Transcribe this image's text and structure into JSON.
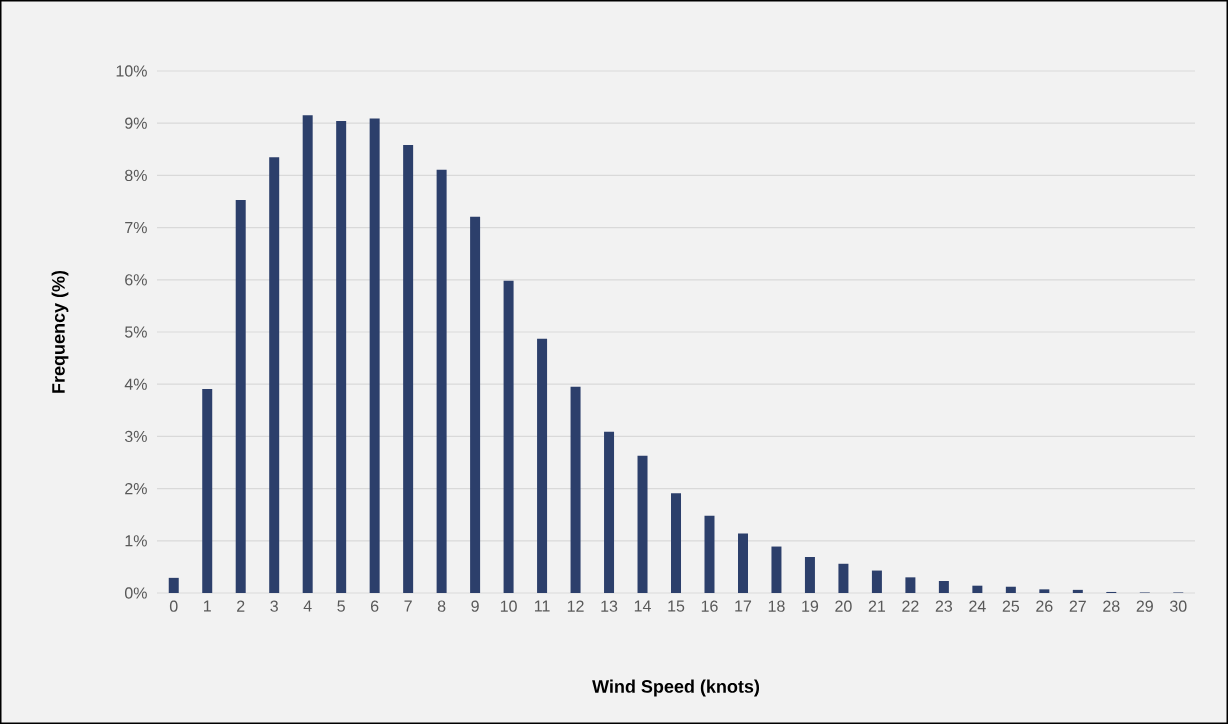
{
  "chart_data": {
    "type": "bar",
    "xlabel": "Wind Speed (knots)",
    "ylabel": "Frequency (%)",
    "categories": [
      "0",
      "1",
      "2",
      "3",
      "4",
      "5",
      "6",
      "7",
      "8",
      "9",
      "10",
      "11",
      "12",
      "13",
      "14",
      "15",
      "16",
      "17",
      "18",
      "19",
      "20",
      "21",
      "22",
      "23",
      "24",
      "25",
      "26",
      "27",
      "28",
      "29",
      "30"
    ],
    "values": [
      0.29,
      3.91,
      7.53,
      8.35,
      9.15,
      9.04,
      9.09,
      8.58,
      8.11,
      7.21,
      5.98,
      4.87,
      3.95,
      3.09,
      2.63,
      1.91,
      1.48,
      1.14,
      0.89,
      0.69,
      0.56,
      0.43,
      0.3,
      0.23,
      0.14,
      0.12,
      0.07,
      0.06,
      0.02,
      0.01,
      0.01
    ],
    "color": "#2c3f6b",
    "ylim": [
      0,
      10
    ],
    "yticks": [
      {
        "value": 0,
        "label": "0%"
      },
      {
        "value": 1,
        "label": "1%"
      },
      {
        "value": 2,
        "label": "2%"
      },
      {
        "value": 3,
        "label": "3%"
      },
      {
        "value": 4,
        "label": "4%"
      },
      {
        "value": 5,
        "label": "5%"
      },
      {
        "value": 6,
        "label": "6%"
      },
      {
        "value": 7,
        "label": "7%"
      },
      {
        "value": 8,
        "label": "8%"
      },
      {
        "value": 9,
        "label": "9%"
      },
      {
        "value": 10,
        "label": "10%"
      }
    ],
    "grid": "y"
  }
}
